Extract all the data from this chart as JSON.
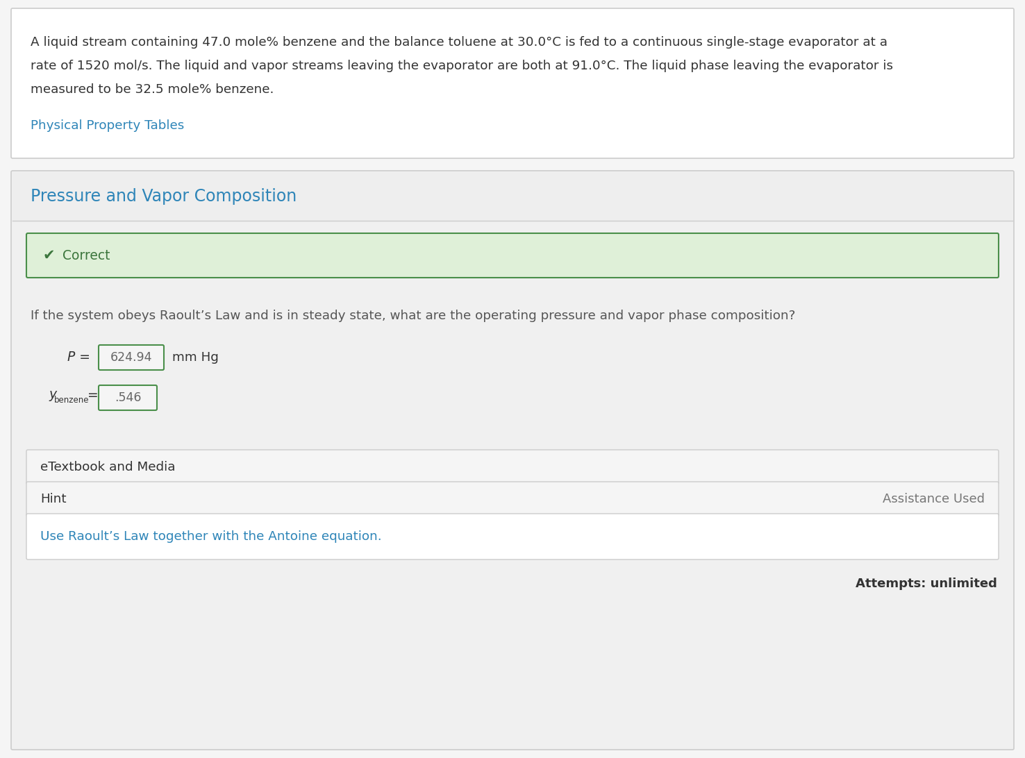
{
  "page_bg": "#f5f5f5",
  "panel1_bg": "#ffffff",
  "panel1_border": "#cccccc",
  "panel2_bg": "#f0f0f0",
  "panel2_border": "#cccccc",
  "panel2_header_bg": "#eeeeee",
  "panel2_inner_bg": "#ffffff",
  "problem_text_line1": "A liquid stream containing 47.0 mole% benzene and the balance toluene at 30.0°C is fed to a continuous single-stage evaporator at a",
  "problem_text_line2": "rate of 1520 mol/s. The liquid and vapor streams leaving the evaporator are both at 91.0°C. The liquid phase leaving the evaporator is",
  "problem_text_line3": "measured to be 32.5 mole% benzene.",
  "problem_text_color": "#333333",
  "link_text": "Physical Property Tables",
  "link_color": "#2e85b8",
  "section_title": "Pressure and Vapor Composition",
  "section_title_color": "#2e85b8",
  "correct_bg": "#dff0d8",
  "correct_border": "#4a8f4a",
  "correct_check": "✔",
  "correct_text": "Correct",
  "correct_text_color": "#3c763d",
  "question_text": "If the system obeys Raoult’s Law and is in steady state, what are the operating pressure and vapor phase composition?",
  "question_text_color": "#555555",
  "input_border_color": "#4a8f4a",
  "input_bg": "#f5f5f5",
  "p_value": "624.94",
  "p_unit": "mm Hg",
  "y_value": ".546",
  "etextbook_text": "eTextbook and Media",
  "etextbook_bg": "#f5f5f5",
  "etextbook_border": "#cccccc",
  "hint_text": "Hint",
  "hint_bg": "#f5f5f5",
  "hint_border": "#cccccc",
  "assistance_text": "Assistance Used",
  "assistance_text_color": "#777777",
  "hint_content": "Use Raoult’s Law together with the Antoine equation.",
  "hint_content_color": "#2e85b8",
  "hint_content_bg": "#ffffff",
  "hint_content_border": "#cccccc",
  "attempts_text": "Attempts: unlimited",
  "dark_text": "#333333",
  "medium_text": "#555555"
}
